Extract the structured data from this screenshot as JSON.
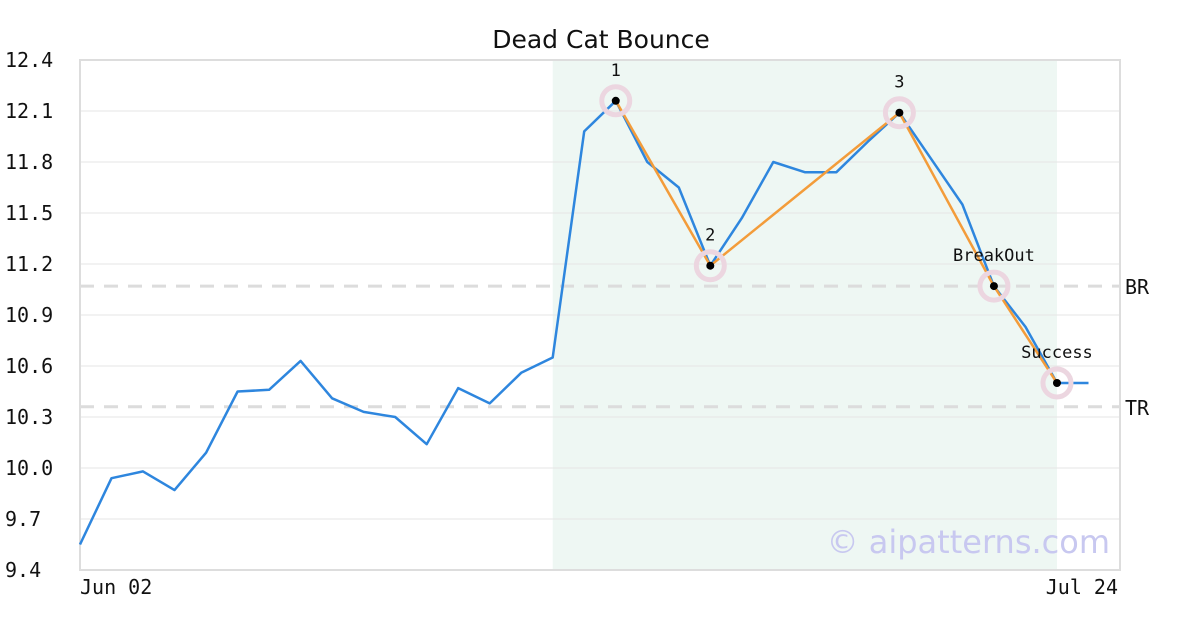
{
  "chart_data": {
    "type": "line",
    "title": "Dead Cat Bounce",
    "xlabel": "",
    "ylabel": "",
    "x_tick_labels": [
      "Jun 02",
      "Jul 24"
    ],
    "ylim": [
      9.4,
      12.4
    ],
    "y_ticks": [
      "9.4",
      "9.7",
      "10.0",
      "10.3",
      "10.6",
      "10.9",
      "11.2",
      "11.5",
      "11.8",
      "12.1",
      "12.4"
    ],
    "grid": "horizontal",
    "series": [
      {
        "color": "#2e86de",
        "values": [
          9.55,
          9.94,
          9.98,
          9.87,
          10.09,
          10.45,
          10.46,
          10.63,
          10.41,
          10.33,
          10.3,
          10.14,
          10.47,
          10.38,
          10.56,
          10.65,
          11.98,
          12.16,
          11.8,
          11.65,
          11.19,
          11.47,
          11.8,
          11.74,
          11.74,
          11.92,
          12.09,
          11.82,
          11.55,
          11.07,
          10.83,
          10.5,
          10.5
        ]
      }
    ],
    "pattern_line": {
      "color": "#f39c3a",
      "points": [
        [
          17,
          12.16
        ],
        [
          20,
          11.19
        ],
        [
          26,
          12.09
        ],
        [
          29,
          11.07
        ],
        [
          31,
          10.5
        ]
      ]
    },
    "pattern_region": {
      "x_start": 15,
      "x_end": 31,
      "color": "#eef7f3"
    },
    "markers": [
      {
        "label": "1",
        "x": 17,
        "y": 12.16
      },
      {
        "label": "2",
        "x": 20,
        "y": 11.19
      },
      {
        "label": "3",
        "x": 26,
        "y": 12.09
      },
      {
        "label": "BreakOut",
        "x": 29,
        "y": 11.07
      },
      {
        "label": "Success",
        "x": 31,
        "y": 10.5
      }
    ],
    "reference_lines": [
      {
        "label": "BR",
        "y": 11.07
      },
      {
        "label": "TR",
        "y": 10.36
      }
    ],
    "watermark": "© aipatterns.com"
  }
}
